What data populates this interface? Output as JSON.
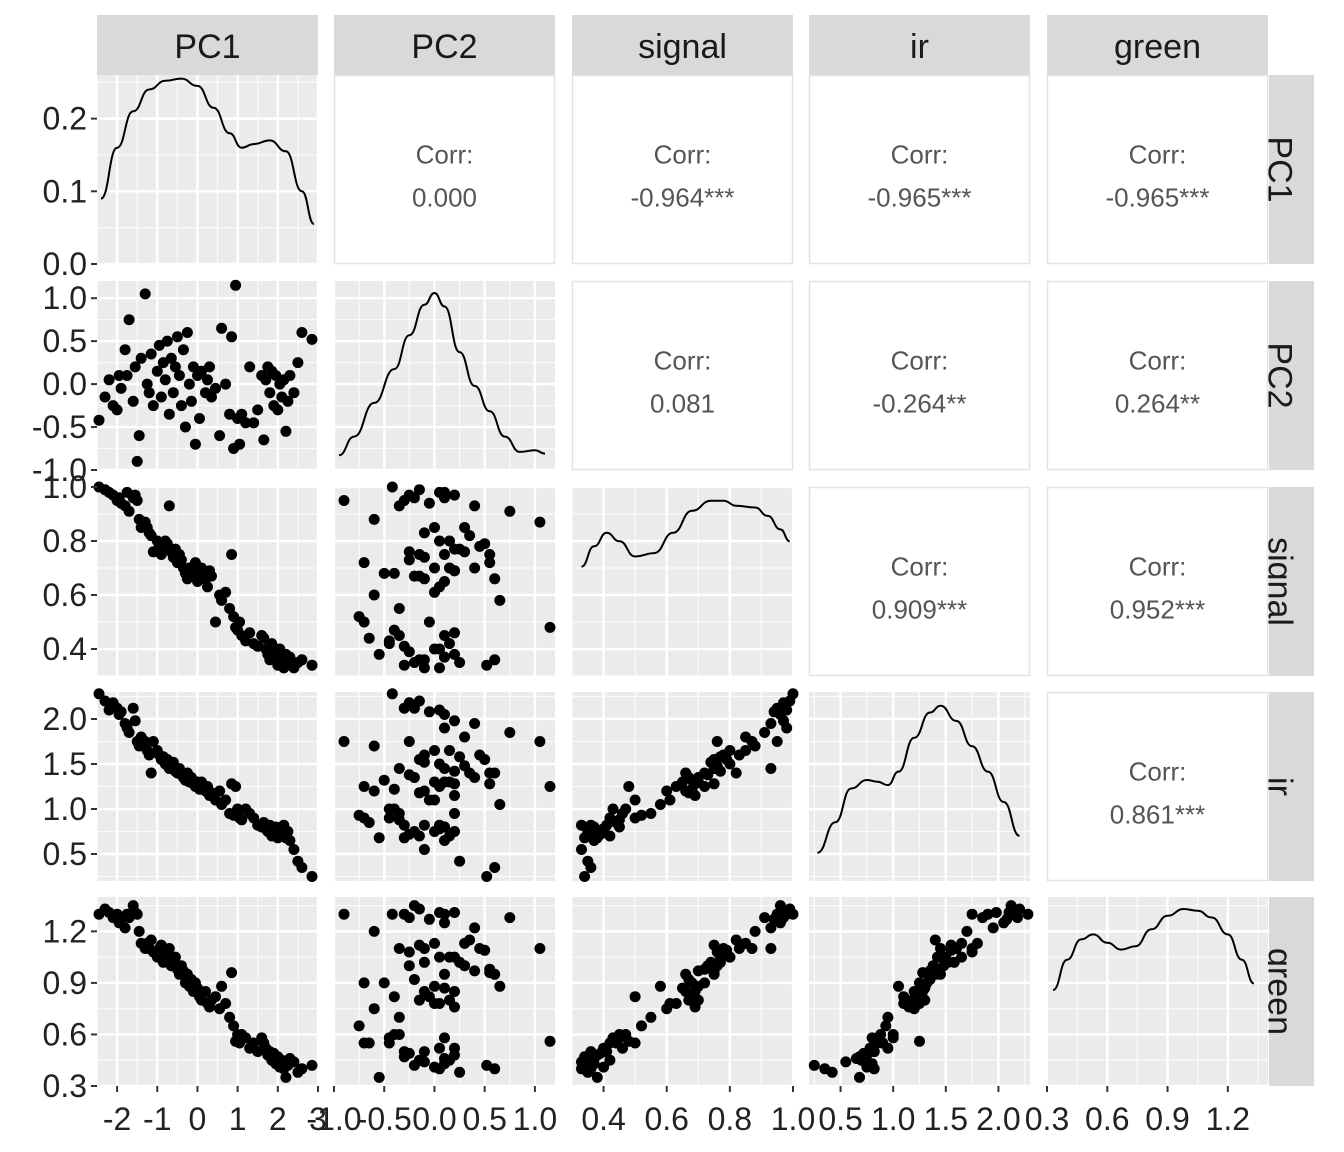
{
  "chart_data": {
    "type": "scatter",
    "variables": [
      "PC1",
      "PC2",
      "signal",
      "ir",
      "green"
    ],
    "colors": {
      "panel_bg": "#EBEBEB",
      "grid": "#FFFFFF",
      "strip_bg": "#D9D9D9",
      "point": "#000000",
      "corr_text": "#555555"
    },
    "correlations": [
      {
        "row": 0,
        "col": 1,
        "label": "Corr:",
        "value": "0.000"
      },
      {
        "row": 0,
        "col": 2,
        "label": "Corr:",
        "value": "-0.964***"
      },
      {
        "row": 0,
        "col": 3,
        "label": "Corr:",
        "value": "-0.965***"
      },
      {
        "row": 0,
        "col": 4,
        "label": "Corr:",
        "value": "-0.965***"
      },
      {
        "row": 1,
        "col": 2,
        "label": "Corr:",
        "value": "0.081"
      },
      {
        "row": 1,
        "col": 3,
        "label": "Corr:",
        "value": "-0.264**"
      },
      {
        "row": 1,
        "col": 4,
        "label": "Corr:",
        "value": "0.264**"
      },
      {
        "row": 2,
        "col": 3,
        "label": "Corr:",
        "value": "0.909***"
      },
      {
        "row": 2,
        "col": 4,
        "label": "Corr:",
        "value": "0.952***"
      },
      {
        "row": 3,
        "col": 4,
        "label": "Corr:",
        "value": "0.861***"
      }
    ],
    "x_axes": [
      {
        "var": "PC1",
        "range": [
          -2.5,
          3.0
        ],
        "ticks": [
          -2,
          -1,
          0,
          1,
          2,
          3
        ],
        "tick_labels": [
          "-2",
          "-1",
          "0",
          "1",
          "2",
          "3"
        ]
      },
      {
        "var": "PC2",
        "range": [
          -1.0,
          1.2
        ],
        "ticks": [
          -1.0,
          -0.5,
          0.0,
          0.5,
          1.0
        ],
        "tick_labels": [
          "-1.0",
          "-0.5",
          "0.0",
          "0.5",
          "1.0"
        ]
      },
      {
        "var": "signal",
        "range": [
          0.3,
          1.0
        ],
        "ticks": [
          0.4,
          0.6,
          0.8,
          1.0
        ],
        "tick_labels": [
          "0.4",
          "0.6",
          "0.8",
          "1.0"
        ]
      },
      {
        "var": "ir",
        "range": [
          0.2,
          2.3
        ],
        "ticks": [
          0.5,
          1.0,
          1.5,
          2.0
        ],
        "tick_labels": [
          "0.5",
          "1.0",
          "1.5",
          "2.0"
        ]
      },
      {
        "var": "green",
        "range": [
          0.3,
          1.4
        ],
        "ticks": [
          0.3,
          0.6,
          0.9,
          1.2
        ],
        "tick_labels": [
          "0.3",
          "0.6",
          "0.9",
          "1.2"
        ]
      }
    ],
    "y_axes": [
      {
        "var": "PC1",
        "range": [
          0.0,
          0.26
        ],
        "ticks": [
          0.0,
          0.1,
          0.2
        ],
        "tick_labels": [
          "0.0",
          "0.1",
          "0.2"
        ]
      },
      {
        "var": "PC2",
        "range": [
          -1.0,
          1.2
        ],
        "ticks": [
          -1.0,
          -0.5,
          0.0,
          0.5,
          1.0
        ],
        "tick_labels": [
          "-1.0",
          "-0.5",
          "0.0",
          "0.5",
          "1.0"
        ]
      },
      {
        "var": "signal",
        "range": [
          0.3,
          1.0
        ],
        "ticks": [
          0.4,
          0.6,
          0.8,
          1.0
        ],
        "tick_labels": [
          "0.4",
          "0.6",
          "0.8",
          "1.0"
        ]
      },
      {
        "var": "ir",
        "range": [
          0.2,
          2.3
        ],
        "ticks": [
          0.5,
          1.0,
          1.5,
          2.0
        ],
        "tick_labels": [
          "0.5",
          "1.0",
          "1.5",
          "2.0"
        ]
      },
      {
        "var": "green",
        "range": [
          0.3,
          1.4
        ],
        "ticks": [
          0.3,
          0.6,
          0.9,
          1.2
        ],
        "tick_labels": [
          "0.3",
          "0.6",
          "0.9",
          "1.2"
        ]
      }
    ],
    "densities": [
      {
        "var": "PC1",
        "x": [
          -2.4,
          -2.0,
          -1.6,
          -1.2,
          -0.8,
          -0.4,
          0.0,
          0.4,
          0.8,
          1.1,
          1.4,
          1.8,
          2.2,
          2.6,
          2.9
        ],
        "y": [
          0.09,
          0.16,
          0.21,
          0.24,
          0.252,
          0.255,
          0.245,
          0.215,
          0.18,
          0.16,
          0.165,
          0.17,
          0.155,
          0.1,
          0.055
        ]
      },
      {
        "var": "PC2",
        "x": [
          -0.95,
          -0.8,
          -0.6,
          -0.4,
          -0.25,
          -0.1,
          0.0,
          0.1,
          0.25,
          0.4,
          0.55,
          0.7,
          0.85,
          1.0,
          1.1
        ],
        "y": [
          0.04,
          0.15,
          0.35,
          0.55,
          0.75,
          0.93,
          1.0,
          0.92,
          0.65,
          0.45,
          0.3,
          0.15,
          0.06,
          0.07,
          0.05
        ]
      },
      {
        "var": "signal",
        "x": [
          0.33,
          0.37,
          0.41,
          0.45,
          0.5,
          0.56,
          0.62,
          0.68,
          0.74,
          0.78,
          0.82,
          0.88,
          0.92,
          0.96,
          0.99
        ],
        "y": [
          0.6,
          0.72,
          0.8,
          0.75,
          0.66,
          0.68,
          0.8,
          0.93,
          0.99,
          0.99,
          0.96,
          0.95,
          0.9,
          0.82,
          0.75
        ]
      },
      {
        "var": "ir",
        "x": [
          0.28,
          0.45,
          0.6,
          0.75,
          0.85,
          0.95,
          1.05,
          1.2,
          1.35,
          1.45,
          1.6,
          1.75,
          1.9,
          2.05,
          2.2
        ],
        "y": [
          0.12,
          0.3,
          0.5,
          0.55,
          0.54,
          0.52,
          0.6,
          0.8,
          0.95,
          0.99,
          0.9,
          0.75,
          0.6,
          0.42,
          0.22
        ]
      },
      {
        "var": "green",
        "x": [
          0.33,
          0.4,
          0.47,
          0.53,
          0.6,
          0.67,
          0.74,
          0.82,
          0.9,
          0.98,
          1.05,
          1.12,
          1.2,
          1.27,
          1.33
        ],
        "y": [
          0.52,
          0.7,
          0.82,
          0.85,
          0.8,
          0.76,
          0.78,
          0.88,
          0.96,
          1.0,
          0.99,
          0.95,
          0.85,
          0.7,
          0.56
        ]
      }
    ],
    "observations": [
      {
        "PC1": -2.45,
        "PC2": -0.42,
        "signal": 1.0,
        "ir": 2.28,
        "green": 1.3
      },
      {
        "PC1": -2.3,
        "PC2": -0.15,
        "signal": 0.99,
        "ir": 2.2,
        "green": 1.33
      },
      {
        "PC1": -2.2,
        "PC2": 0.05,
        "signal": 0.98,
        "ir": 2.1,
        "green": 1.31
      },
      {
        "PC1": -2.1,
        "PC2": -0.25,
        "signal": 0.97,
        "ir": 2.18,
        "green": 1.28
      },
      {
        "PC1": -2.0,
        "PC2": -0.3,
        "signal": 0.95,
        "ir": 2.12,
        "green": 1.3
      },
      {
        "PC1": -1.95,
        "PC2": 0.1,
        "signal": 0.96,
        "ir": 2.05,
        "green": 1.25
      },
      {
        "PC1": -1.9,
        "PC2": -0.05,
        "signal": 0.94,
        "ir": 2.08,
        "green": 1.27
      },
      {
        "PC1": -1.8,
        "PC2": 0.4,
        "signal": 0.93,
        "ir": 1.95,
        "green": 1.22
      },
      {
        "PC1": -1.75,
        "PC2": 0.1,
        "signal": 0.98,
        "ir": 1.9,
        "green": 1.3
      },
      {
        "PC1": -1.7,
        "PC2": 0.75,
        "signal": 0.91,
        "ir": 1.85,
        "green": 1.28
      },
      {
        "PC1": -1.6,
        "PC2": -0.2,
        "signal": 0.96,
        "ir": 2.12,
        "green": 1.35
      },
      {
        "PC1": -1.55,
        "PC2": 0.2,
        "signal": 0.97,
        "ir": 1.98,
        "green": 1.31
      },
      {
        "PC1": -1.5,
        "PC2": -0.9,
        "signal": 0.95,
        "ir": 1.75,
        "green": 1.3
      },
      {
        "PC1": -1.45,
        "PC2": -0.6,
        "signal": 0.88,
        "ir": 1.7,
        "green": 1.2
      },
      {
        "PC1": -1.4,
        "PC2": 0.3,
        "signal": 0.85,
        "ir": 1.8,
        "green": 1.13
      },
      {
        "PC1": -1.3,
        "PC2": 1.05,
        "signal": 0.87,
        "ir": 1.75,
        "green": 1.1
      },
      {
        "PC1": -1.25,
        "PC2": 0.0,
        "signal": 0.85,
        "ir": 1.65,
        "green": 1.13
      },
      {
        "PC1": -1.2,
        "PC2": -0.1,
        "signal": 0.83,
        "ir": 1.6,
        "green": 1.1
      },
      {
        "PC1": -1.15,
        "PC2": 0.35,
        "signal": 0.82,
        "ir": 1.4,
        "green": 1.15
      },
      {
        "PC1": -1.1,
        "PC2": -0.25,
        "signal": 0.76,
        "ir": 1.75,
        "green": 1.08
      },
      {
        "PC1": -1.0,
        "PC2": 0.15,
        "signal": 0.8,
        "ir": 1.65,
        "green": 1.05
      },
      {
        "PC1": -0.95,
        "PC2": 0.45,
        "signal": 0.78,
        "ir": 1.6,
        "green": 1.1
      },
      {
        "PC1": -0.9,
        "PC2": -0.15,
        "signal": 0.75,
        "ir": 1.55,
        "green": 1.12
      },
      {
        "PC1": -0.85,
        "PC2": 0.25,
        "signal": 0.77,
        "ir": 1.58,
        "green": 1.02
      },
      {
        "PC1": -0.8,
        "PC2": 0.05,
        "signal": 0.8,
        "ir": 1.5,
        "green": 1.05
      },
      {
        "PC1": -0.75,
        "PC2": 0.5,
        "signal": 0.79,
        "ir": 1.55,
        "green": 1.09
      },
      {
        "PC1": -0.7,
        "PC2": -0.35,
        "signal": 0.93,
        "ir": 1.45,
        "green": 1.1
      },
      {
        "PC1": -0.65,
        "PC2": 0.3,
        "signal": 0.76,
        "ir": 1.48,
        "green": 1.0
      },
      {
        "PC1": -0.6,
        "PC2": -0.1,
        "signal": 0.74,
        "ir": 1.52,
        "green": 1.02
      },
      {
        "PC1": -0.55,
        "PC2": 0.2,
        "signal": 0.77,
        "ir": 1.42,
        "green": 1.05
      },
      {
        "PC1": -0.5,
        "PC2": 0.55,
        "signal": 0.72,
        "ir": 1.4,
        "green": 0.98
      },
      {
        "PC1": -0.45,
        "PC2": 0.1,
        "signal": 0.75,
        "ir": 1.45,
        "green": 0.95
      },
      {
        "PC1": -0.4,
        "PC2": -0.25,
        "signal": 0.73,
        "ir": 1.38,
        "green": 1.0
      },
      {
        "PC1": -0.35,
        "PC2": 0.4,
        "signal": 0.7,
        "ir": 1.35,
        "green": 0.97
      },
      {
        "PC1": -0.3,
        "PC2": -0.5,
        "signal": 0.68,
        "ir": 1.32,
        "green": 0.9
      },
      {
        "PC1": -0.25,
        "PC2": 0.6,
        "signal": 0.66,
        "ir": 1.4,
        "green": 0.95
      },
      {
        "PC1": -0.2,
        "PC2": 0.0,
        "signal": 0.7,
        "ir": 1.3,
        "green": 0.88
      },
      {
        "PC1": -0.15,
        "PC2": -0.2,
        "signal": 0.67,
        "ir": 1.35,
        "green": 0.92
      },
      {
        "PC1": -0.1,
        "PC2": 0.2,
        "signal": 0.69,
        "ir": 1.28,
        "green": 0.85
      },
      {
        "PC1": -0.05,
        "PC2": -0.7,
        "signal": 0.72,
        "ir": 1.25,
        "green": 0.9
      },
      {
        "PC1": 0.0,
        "PC2": 0.1,
        "signal": 0.65,
        "ir": 1.3,
        "green": 0.87
      },
      {
        "PC1": 0.05,
        "PC2": -0.4,
        "signal": 0.68,
        "ir": 1.22,
        "green": 0.82
      },
      {
        "PC1": 0.1,
        "PC2": 0.15,
        "signal": 0.7,
        "ir": 1.3,
        "green": 0.8
      },
      {
        "PC1": 0.2,
        "PC2": -0.1,
        "signal": 0.66,
        "ir": 1.2,
        "green": 0.85
      },
      {
        "PC1": 0.25,
        "PC2": 0.05,
        "signal": 0.63,
        "ir": 1.25,
        "green": 0.78
      },
      {
        "PC1": 0.3,
        "PC2": 0.2,
        "signal": 0.69,
        "ir": 1.15,
        "green": 0.76
      },
      {
        "PC1": 0.35,
        "PC2": -0.15,
        "signal": 0.67,
        "ir": 1.18,
        "green": 0.8
      },
      {
        "PC1": 0.45,
        "PC2": -0.05,
        "signal": 0.5,
        "ir": 1.1,
        "green": 0.82
      },
      {
        "PC1": 0.55,
        "PC2": -0.6,
        "signal": 0.6,
        "ir": 1.2,
        "green": 0.75
      },
      {
        "PC1": 0.6,
        "PC2": 0.65,
        "signal": 0.58,
        "ir": 1.05,
        "green": 0.88
      },
      {
        "PC1": 0.7,
        "PC2": 0.0,
        "signal": 0.61,
        "ir": 1.1,
        "green": 0.78
      },
      {
        "PC1": 0.8,
        "PC2": -0.35,
        "signal": 0.55,
        "ir": 0.95,
        "green": 0.7
      },
      {
        "PC1": 0.85,
        "PC2": 0.55,
        "signal": 0.75,
        "ir": 1.28,
        "green": 0.96
      },
      {
        "PC1": 0.9,
        "PC2": -0.75,
        "signal": 0.52,
        "ir": 0.93,
        "green": 0.65
      },
      {
        "PC1": 0.95,
        "PC2": 1.15,
        "signal": 0.48,
        "ir": 1.25,
        "green": 0.56
      },
      {
        "PC1": 1.0,
        "PC2": -0.4,
        "signal": 0.47,
        "ir": 1.0,
        "green": 0.6
      },
      {
        "PC1": 1.05,
        "PC2": -0.7,
        "signal": 0.5,
        "ir": 0.9,
        "green": 0.55
      },
      {
        "PC1": 1.1,
        "PC2": -0.35,
        "signal": 0.45,
        "ir": 0.88,
        "green": 0.6
      },
      {
        "PC1": 1.2,
        "PC2": -0.45,
        "signal": 0.43,
        "ir": 1.0,
        "green": 0.58
      },
      {
        "PC1": 1.3,
        "PC2": 0.2,
        "signal": 0.46,
        "ir": 0.95,
        "green": 0.52
      },
      {
        "PC1": 1.4,
        "PC2": -0.45,
        "signal": 0.42,
        "ir": 0.9,
        "green": 0.55
      },
      {
        "PC1": 1.5,
        "PC2": -0.3,
        "signal": 0.41,
        "ir": 0.82,
        "green": 0.5
      },
      {
        "PC1": 1.6,
        "PC2": 0.1,
        "signal": 0.45,
        "ir": 0.8,
        "green": 0.58
      },
      {
        "PC1": 1.65,
        "PC2": -0.65,
        "signal": 0.44,
        "ir": 0.85,
        "green": 0.55
      },
      {
        "PC1": 1.7,
        "PC2": 0.05,
        "signal": 0.4,
        "ir": 0.78,
        "green": 0.52
      },
      {
        "PC1": 1.75,
        "PC2": 0.2,
        "signal": 0.38,
        "ir": 0.75,
        "green": 0.48
      },
      {
        "PC1": 1.8,
        "PC2": -0.1,
        "signal": 0.36,
        "ir": 0.82,
        "green": 0.5
      },
      {
        "PC1": 1.85,
        "PC2": 0.15,
        "signal": 0.42,
        "ir": 0.7,
        "green": 0.45
      },
      {
        "PC1": 1.9,
        "PC2": -0.25,
        "signal": 0.39,
        "ir": 0.72,
        "green": 0.49
      },
      {
        "PC1": 1.95,
        "PC2": 0.1,
        "signal": 0.37,
        "ir": 0.8,
        "green": 0.43
      },
      {
        "PC1": 2.0,
        "PC2": -0.3,
        "signal": 0.34,
        "ir": 0.68,
        "green": 0.47
      },
      {
        "PC1": 2.05,
        "PC2": 0.0,
        "signal": 0.4,
        "ir": 0.75,
        "green": 0.41
      },
      {
        "PC1": 2.1,
        "PC2": -0.15,
        "signal": 0.36,
        "ir": 0.7,
        "green": 0.45
      },
      {
        "PC1": 2.15,
        "PC2": 0.05,
        "signal": 0.33,
        "ir": 0.82,
        "green": 0.4
      },
      {
        "PC1": 2.2,
        "PC2": -0.55,
        "signal": 0.38,
        "ir": 0.68,
        "green": 0.35
      },
      {
        "PC1": 2.25,
        "PC2": -0.2,
        "signal": 0.35,
        "ir": 0.75,
        "green": 0.42
      },
      {
        "PC1": 2.3,
        "PC2": 0.1,
        "signal": 0.37,
        "ir": 0.65,
        "green": 0.46
      },
      {
        "PC1": 2.4,
        "PC2": -0.1,
        "signal": 0.33,
        "ir": 0.55,
        "green": 0.44
      },
      {
        "PC1": 2.5,
        "PC2": 0.25,
        "signal": 0.35,
        "ir": 0.42,
        "green": 0.38
      },
      {
        "PC1": 2.6,
        "PC2": 0.6,
        "signal": 0.36,
        "ir": 0.35,
        "green": 0.4
      },
      {
        "PC1": 2.85,
        "PC2": 0.52,
        "signal": 0.34,
        "ir": 0.25,
        "green": 0.42
      }
    ]
  }
}
